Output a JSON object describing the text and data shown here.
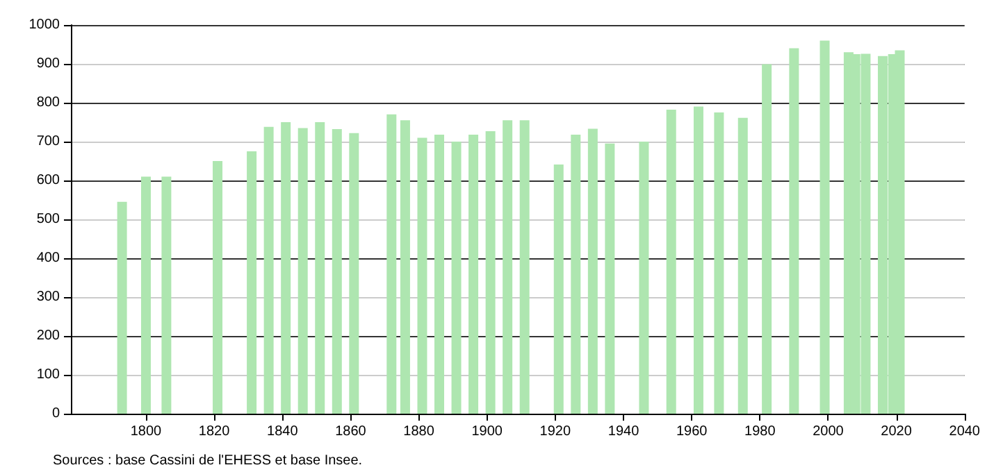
{
  "chart_data": {
    "type": "bar",
    "x": [
      1793,
      1800,
      1806,
      1821,
      1831,
      1836,
      1841,
      1846,
      1851,
      1856,
      1861,
      1872,
      1876,
      1881,
      1886,
      1891,
      1896,
      1901,
      1906,
      1911,
      1921,
      1926,
      1931,
      1936,
      1946,
      1954,
      1962,
      1968,
      1975,
      1982,
      1990,
      1999,
      2006,
      2008,
      2011,
      2016,
      2019,
      2021
    ],
    "values": [
      545,
      610,
      610,
      650,
      675,
      738,
      750,
      735,
      750,
      732,
      722,
      770,
      755,
      710,
      718,
      700,
      718,
      727,
      755,
      755,
      641,
      718,
      733,
      695,
      700,
      782,
      790,
      775,
      761,
      899,
      940,
      960,
      930,
      925,
      926,
      920,
      925,
      935
    ],
    "color": "#aee6b0",
    "xlim": [
      1778,
      2040
    ],
    "xticks": [
      1800,
      1820,
      1840,
      1860,
      1880,
      1900,
      1920,
      1940,
      1960,
      1980,
      2000,
      2020,
      2040
    ],
    "ylim": [
      0,
      1000
    ],
    "yticks": [
      0,
      100,
      200,
      300,
      400,
      500,
      600,
      700,
      800,
      900,
      1000
    ],
    "grid": "y",
    "annotations": [
      "Sources : base Cassini de l'EHESS et base Insee."
    ]
  }
}
